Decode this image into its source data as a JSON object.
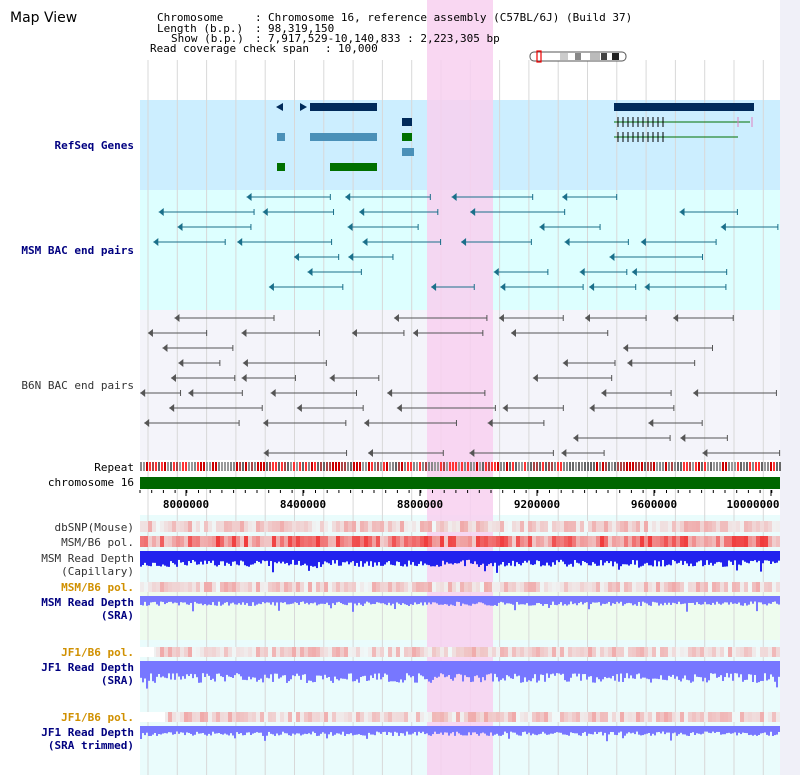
{
  "view_title": "Map View",
  "header": {
    "chromosome_key": "Chromosome",
    "chromosome_value": "Chromosome 16, reference assembly (C57BL/6J) (Build 37)",
    "length_key": "Length (b.p.)",
    "length_value": "98,319,150",
    "show_key": "Show (b.p.)",
    "show_value": "7,917,529-10,140,833 : 2,223,305 bp",
    "coverage_key": "Read coverage check span",
    "coverage_value": "10,000"
  },
  "tracks": {
    "refseq": "RefSeq Genes",
    "msm_bac": "MSM BAC end pairs",
    "b6n_bac": "B6N BAC end pairs",
    "repeat": "Repeat",
    "chromosome": "chromosome 16",
    "dbsnp": "dbSNP(Mouse)",
    "msm_b6_pol_1": "MSM/B6 pol.",
    "msm_depth_cap_1": "MSM Read Depth",
    "msm_depth_cap_2": "(Capillary)",
    "msm_b6_pol_2": "MSM/B6 pol.",
    "msm_depth_sra_1": "MSM Read Depth",
    "msm_depth_sra_2": "(SRA)",
    "jf1_b6_pol_1": "JF1/B6 pol.",
    "jf1_depth_sra_1": "JF1 Read Depth",
    "jf1_depth_sra_2": "(SRA)",
    "jf1_b6_pol_2": "JF1/B6 pol.",
    "jf1_depth_trim_1": "JF1 Read Depth",
    "jf1_depth_trim_2": "(SRA trimmed)"
  },
  "axis": {
    "ticks": [
      "8000000",
      "8400000",
      "8800000",
      "9200000",
      "9600000",
      "10000000"
    ]
  },
  "colors": {
    "highlight": "#f8d0f0",
    "refseq_bg": "#cceeff",
    "bac_bg": "#ddffff",
    "chromosome_bar": "#006600",
    "depth_blue": "#2222ee",
    "depth_sra": "#7777ff",
    "pol_red": "#ee3333",
    "gene_navy": "#002a5a",
    "gene_steel": "#4a90b8",
    "gene_green": "#007000"
  }
}
